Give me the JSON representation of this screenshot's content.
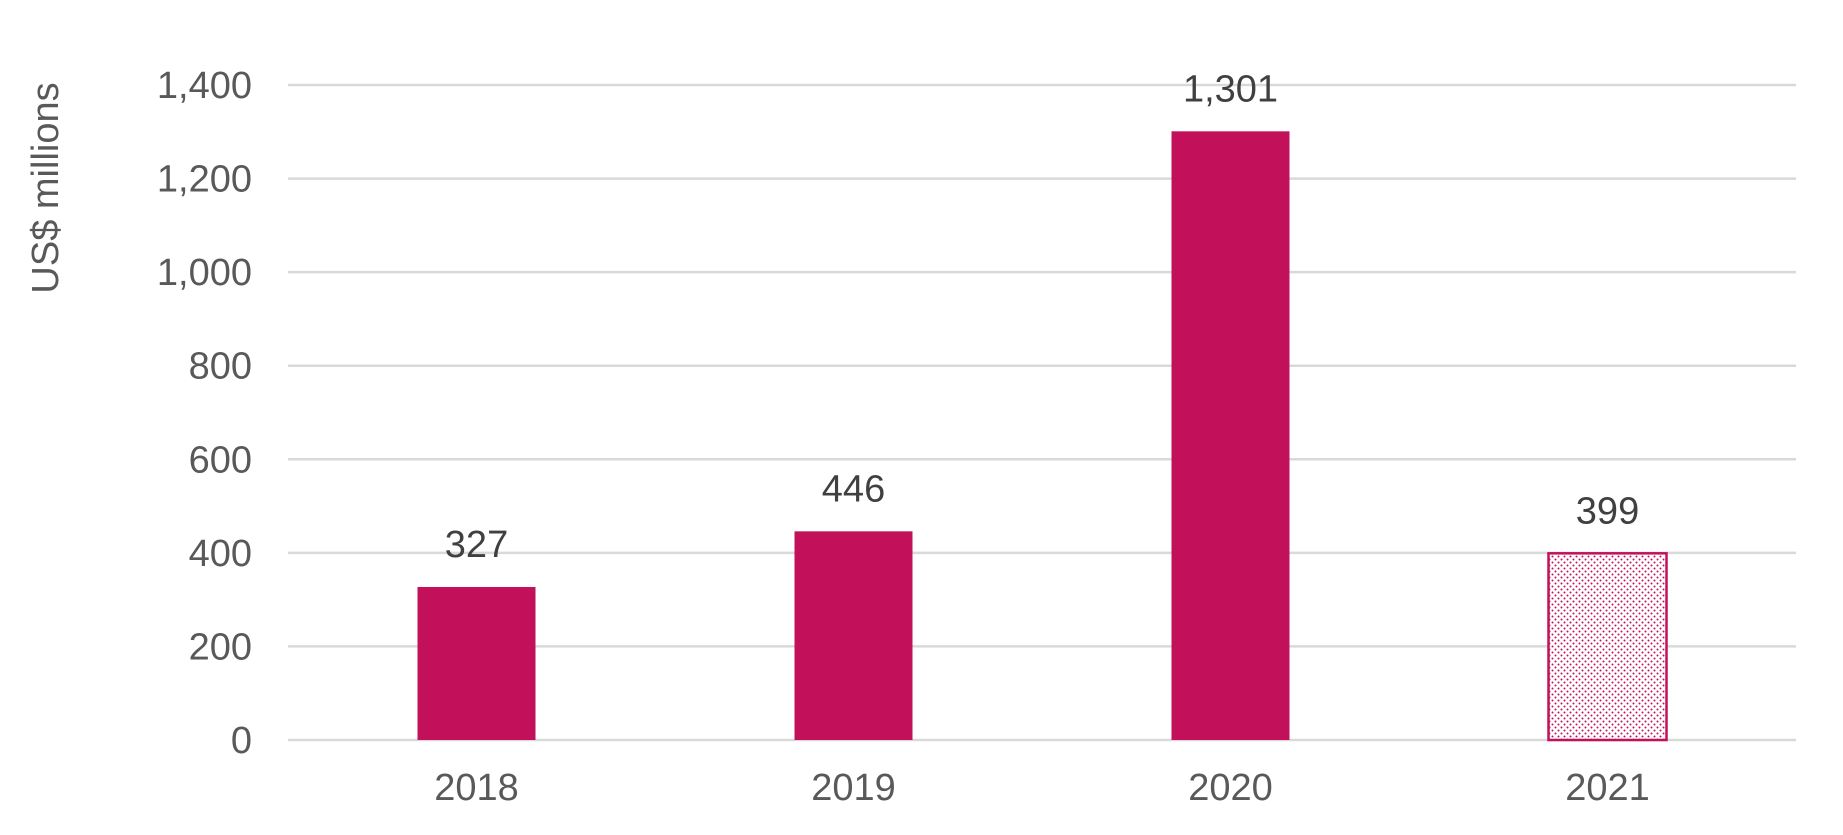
{
  "chart_data": {
    "type": "bar",
    "categories": [
      "2018",
      "2019",
      "2020",
      "2021"
    ],
    "values": [
      327,
      446,
      1301,
      399
    ],
    "value_labels": [
      "327",
      "446",
      "1,301",
      "399"
    ],
    "ylabel": "US$ millions",
    "xlabel": "",
    "ylim": [
      0,
      1400
    ],
    "yticks": [
      0,
      200,
      400,
      600,
      800,
      1000,
      1200,
      1400
    ],
    "ytick_labels": [
      "0",
      "200",
      "400",
      "600",
      "800",
      "1,000",
      "1,200",
      "1,400"
    ],
    "grid": true,
    "bar_color": "#C2105A",
    "estimated_categories": [
      "2021"
    ],
    "estimated_style": "dotted"
  }
}
